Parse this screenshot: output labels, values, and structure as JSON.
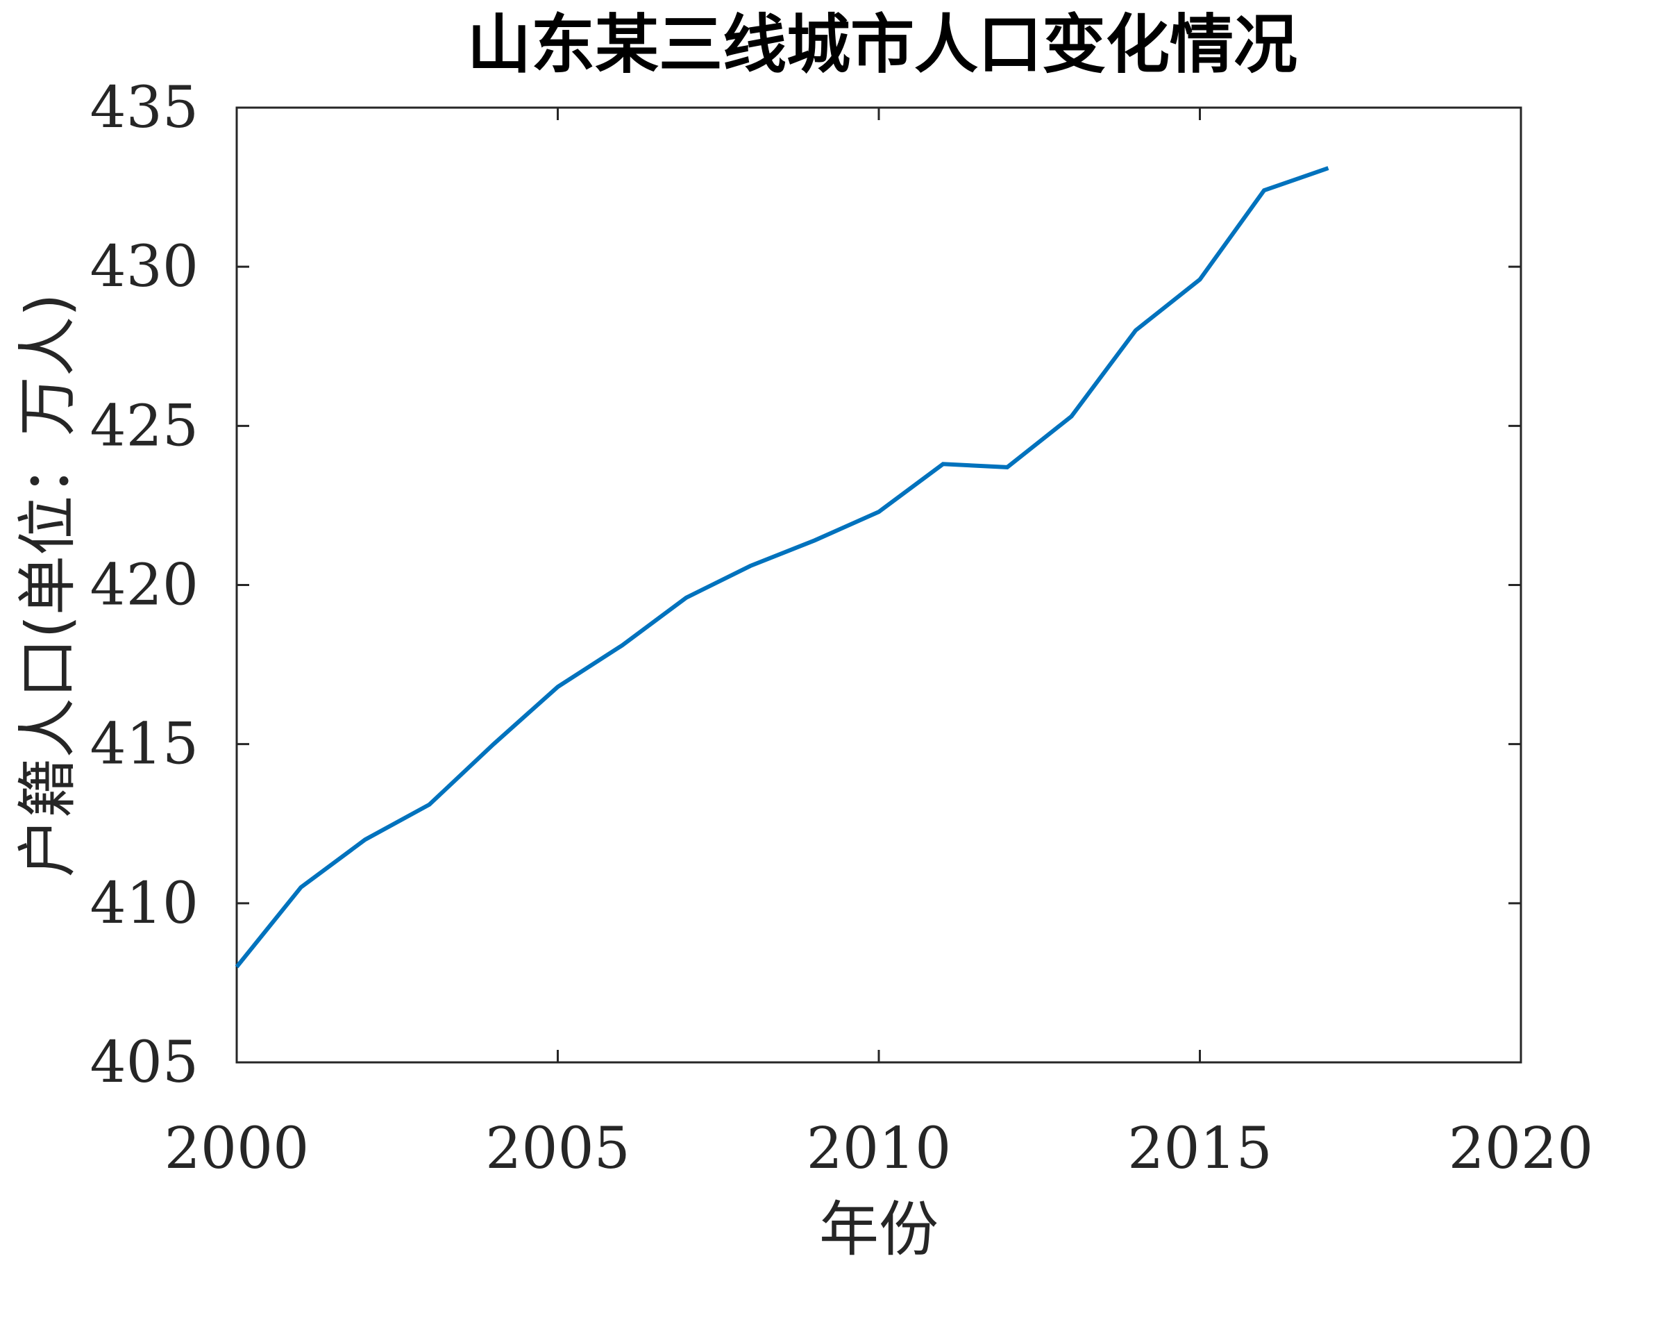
{
  "chart_data": {
    "type": "line",
    "title": "山东某三线城市人口变化情况",
    "xlabel": "年份",
    "ylabel": "户籍人口(单位：万人)",
    "xlim": [
      2000,
      2020
    ],
    "ylim": [
      405,
      435
    ],
    "xticks": [
      "2000",
      "2005",
      "2010",
      "2015",
      "2020"
    ],
    "yticks": [
      "405",
      "410",
      "415",
      "420",
      "425",
      "430",
      "435"
    ],
    "grid": false,
    "series": [
      {
        "color": "#0072BD",
        "x": [
          2000,
          2001,
          2002,
          2003,
          2004,
          2005,
          2006,
          2007,
          2008,
          2009,
          2010,
          2011,
          2012,
          2013,
          2014,
          2015,
          2016,
          2017
        ],
        "y": [
          408.0,
          410.5,
          412.0,
          413.1,
          415.0,
          416.8,
          418.1,
          419.6,
          420.6,
          421.4,
          422.3,
          423.8,
          423.7,
          425.3,
          428.0,
          429.6,
          432.4,
          433.1
        ]
      }
    ]
  }
}
